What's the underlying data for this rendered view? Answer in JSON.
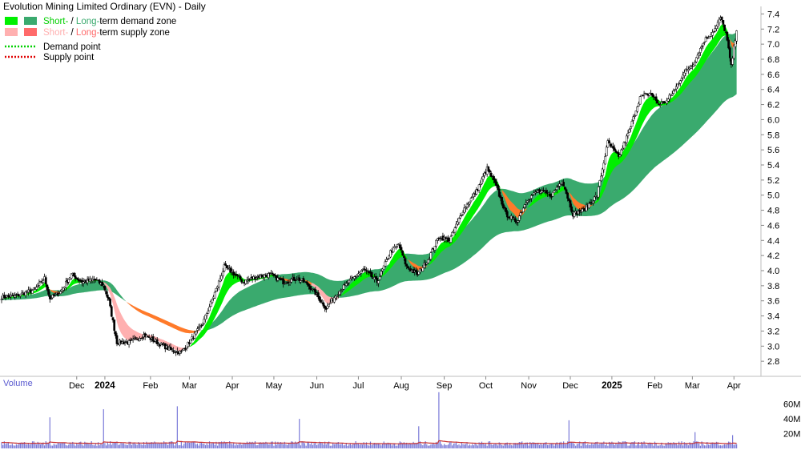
{
  "chart_data": {
    "type": "candlestick",
    "title": "Evolution Mining Limited Ordinary (EVN) - Daily",
    "legend": {
      "placement": "top-left",
      "items": [
        {
          "label_a": "Short-",
          "sep": " / ",
          "label_b": "Long-",
          "rest": "term demand zone",
          "color_a": "#00f000",
          "color_b": "#3aaa6e",
          "text_color_a": "#00d000",
          "text_color_b": "#3aaa6e",
          "text_color_rest": "#000000"
        },
        {
          "label_a": "Short-",
          "sep": " / ",
          "label_b": "Long-",
          "rest": "term supply zone",
          "color_a": "#ffb0b0",
          "color_b": "#ff6a6a",
          "text_color_a": "#ffb0b0",
          "text_color_b": "#ff6a6a",
          "text_color_rest": "#000000"
        },
        {
          "label": "Demand point",
          "color": "#00d000",
          "style": "dotted"
        },
        {
          "label": "Supply point",
          "color": "#e00000",
          "style": "dotted"
        }
      ]
    },
    "price_axis": {
      "min": 2.6,
      "max": 7.5,
      "ticks": [
        2.8,
        3.0,
        3.2,
        3.4,
        3.6,
        3.8,
        4.0,
        4.2,
        4.4,
        4.6,
        4.8,
        5.0,
        5.2,
        5.4,
        5.6,
        5.8,
        6.0,
        6.2,
        6.4,
        6.6,
        6.8,
        7.0,
        7.2,
        7.4
      ],
      "side": "right",
      "grid": false
    },
    "x_axis": {
      "labels": [
        "Dec",
        "2024",
        "Feb",
        "Mar",
        "Apr",
        "May",
        "Jun",
        "Jul",
        "Aug",
        "Sep",
        "Oct",
        "Nov",
        "Dec",
        "2025",
        "Feb",
        "Mar",
        "Apr"
      ],
      "bold_labels": [
        "2024",
        "2025"
      ],
      "label_days": [
        56,
        77,
        111,
        140,
        172,
        203,
        235,
        266,
        298,
        330,
        361,
        393,
        424,
        455,
        487,
        515,
        546
      ]
    },
    "price_anchors": [
      [
        0,
        3.65
      ],
      [
        10,
        3.66
      ],
      [
        25,
        3.75
      ],
      [
        32,
        3.9
      ],
      [
        36,
        3.63
      ],
      [
        44,
        3.72
      ],
      [
        52,
        3.95
      ],
      [
        60,
        3.85
      ],
      [
        70,
        3.88
      ],
      [
        76,
        3.8
      ],
      [
        80,
        3.6
      ],
      [
        86,
        3.05
      ],
      [
        96,
        3.05
      ],
      [
        106,
        3.15
      ],
      [
        116,
        3.05
      ],
      [
        126,
        2.95
      ],
      [
        134,
        2.92
      ],
      [
        140,
        3.05
      ],
      [
        150,
        3.3
      ],
      [
        160,
        3.75
      ],
      [
        166,
        4.05
      ],
      [
        172,
        3.98
      ],
      [
        180,
        3.85
      ],
      [
        190,
        3.92
      ],
      [
        200,
        3.95
      ],
      [
        210,
        3.85
      ],
      [
        220,
        3.9
      ],
      [
        228,
        3.82
      ],
      [
        234,
        3.7
      ],
      [
        242,
        3.5
      ],
      [
        250,
        3.7
      ],
      [
        262,
        3.9
      ],
      [
        270,
        4.02
      ],
      [
        280,
        3.85
      ],
      [
        290,
        4.25
      ],
      [
        296,
        4.35
      ],
      [
        302,
        4.05
      ],
      [
        310,
        3.95
      ],
      [
        318,
        4.15
      ],
      [
        326,
        4.45
      ],
      [
        334,
        4.4
      ],
      [
        344,
        4.8
      ],
      [
        354,
        5.05
      ],
      [
        362,
        5.35
      ],
      [
        368,
        5.15
      ],
      [
        372,
        4.95
      ],
      [
        376,
        4.75
      ],
      [
        384,
        4.65
      ],
      [
        392,
        4.95
      ],
      [
        400,
        5.05
      ],
      [
        410,
        5.0
      ],
      [
        418,
        5.2
      ],
      [
        426,
        4.75
      ],
      [
        434,
        4.8
      ],
      [
        444,
        5.0
      ],
      [
        452,
        5.7
      ],
      [
        460,
        5.5
      ],
      [
        468,
        5.85
      ],
      [
        476,
        6.3
      ],
      [
        484,
        6.35
      ],
      [
        490,
        6.2
      ],
      [
        496,
        6.25
      ],
      [
        502,
        6.4
      ],
      [
        508,
        6.6
      ],
      [
        516,
        6.75
      ],
      [
        524,
        7.05
      ],
      [
        532,
        7.2
      ],
      [
        536,
        7.35
      ],
      [
        540,
        7.15
      ],
      [
        544,
        6.7
      ],
      [
        548,
        7.2
      ]
    ],
    "volume_axis": {
      "ticks": [
        "20M",
        "40M",
        "60M"
      ],
      "tick_values": [
        20,
        40,
        60
      ],
      "max": 78,
      "label": "Volume"
    },
    "volume_spikes": [
      [
        36,
        42
      ],
      [
        76,
        53
      ],
      [
        131,
        57
      ],
      [
        222,
        40
      ],
      [
        311,
        30
      ],
      [
        326,
        76
      ],
      [
        423,
        38
      ],
      [
        517,
        22
      ],
      [
        545,
        18
      ]
    ],
    "volume_baseline": 7,
    "colors": {
      "short_demand": "#00ee00",
      "long_demand": "#3aaa6e",
      "short_supply": "#ffb0b0",
      "long_supply": "#ff7a2a",
      "volume_bar": "#7a7ad8",
      "volume_ma": "#c83030",
      "candle_up": "#ffffff",
      "candle_down": "#000000"
    }
  }
}
